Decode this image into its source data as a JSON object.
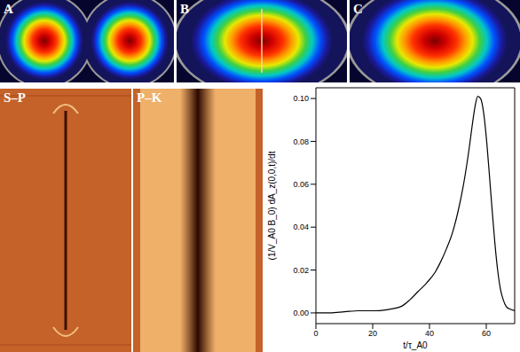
{
  "panels": {
    "top": [
      "A",
      "B",
      "C"
    ],
    "bottom": [
      "S–P",
      "P–K"
    ]
  },
  "chart_data": {
    "type": "line",
    "x_label": "t/τ_A0",
    "y_label": "(1/V_A0 B_0) dA_z(0,0,t)/dt",
    "x": [
      0,
      5,
      10,
      15,
      20,
      25,
      30,
      33,
      36,
      39,
      42,
      44,
      46,
      48,
      50,
      52,
      54,
      55,
      56,
      57,
      58,
      59,
      60,
      61,
      62,
      63,
      64,
      65,
      66,
      67,
      68,
      70
    ],
    "values": [
      0.0,
      0.0,
      0.0005,
      0.001,
      0.001,
      0.0015,
      0.003,
      0.006,
      0.01,
      0.014,
      0.019,
      0.024,
      0.03,
      0.037,
      0.047,
      0.06,
      0.077,
      0.087,
      0.096,
      0.101,
      0.1,
      0.094,
      0.082,
      0.066,
      0.049,
      0.033,
      0.02,
      0.011,
      0.006,
      0.003,
      0.002,
      0.001
    ],
    "color": "#000000",
    "xlim": [
      0,
      70
    ],
    "xticks": [
      0,
      20,
      40,
      60
    ],
    "ylim": [
      -0.005,
      0.105
    ],
    "yticks": [
      {
        "value": 0,
        "label": "0.00"
      },
      {
        "value": 0.02,
        "label": "0.02"
      },
      {
        "value": 0.04,
        "label": "0.04"
      },
      {
        "value": 0.06,
        "label": "0.06"
      },
      {
        "value": 0.08,
        "label": "0.08"
      },
      {
        "value": 0.1,
        "label": "0.10"
      }
    ]
  }
}
